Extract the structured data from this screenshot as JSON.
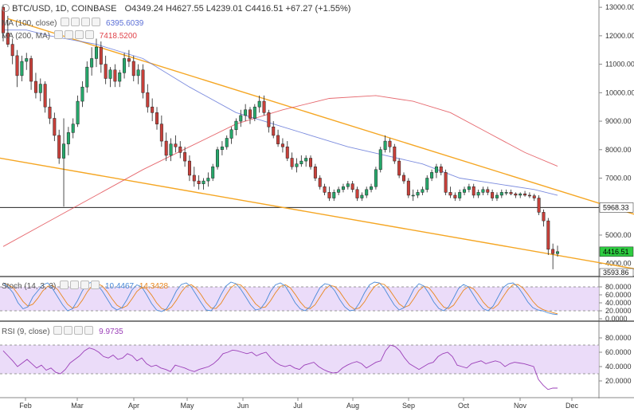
{
  "header": {
    "symbol": "BTC/USD, 1D, COINBASE",
    "open": "O4349.24",
    "high": "H4627.55",
    "low": "L4239.01",
    "close": "C4416.51",
    "change": "+67.27 (+1.55%)"
  },
  "indicators": {
    "ma100": {
      "label": "MA (100, close)",
      "value": "6395.6039",
      "color": "#5b6fd6"
    },
    "ma200": {
      "label": "MA (200, MA)",
      "value": "7418.5200",
      "color": "#e0434b"
    },
    "stoch": {
      "label": "Stoch (14, 3, 3)",
      "k": "10.4467",
      "d": "14.3428"
    },
    "rsi": {
      "label": "RSI (9, close)",
      "value": "9.9735"
    }
  },
  "chart_data": [
    {
      "type": "candlestick",
      "pane": "price",
      "x_tick_labels": [
        "Feb",
        "Mar",
        "Apr",
        "May",
        "Jun",
        "Jul",
        "Aug",
        "Sep",
        "Oct",
        "Nov",
        "Dec"
      ],
      "y_tick_labels": [
        "13000.00",
        "12000.00",
        "11000.00",
        "10000.00",
        "9000.00",
        "8000.00",
        "7000.00",
        "6000.00",
        "5000.00",
        "4000.00"
      ],
      "ylim": [
        3600,
        13200
      ],
      "horizontal_line": 5968.33,
      "price_labels": {
        "support": "5968.33",
        "last": "4416.51",
        "low": "3593.86"
      },
      "trendlines": [
        {
          "name": "upper",
          "from": [
            "Jan 18",
            12600
          ],
          "to": [
            "Dec 8",
            5700
          ]
        },
        {
          "name": "lower",
          "from": [
            "Jan 1",
            7800
          ],
          "to": [
            "Dec 8",
            3800
          ]
        }
      ],
      "candles_ohlc": [
        [
          13000,
          13100,
          11800,
          12100
        ],
        [
          12100,
          12700,
          11600,
          11700
        ],
        [
          11700,
          11900,
          11000,
          11300
        ],
        [
          11300,
          11500,
          10200,
          10600
        ],
        [
          10600,
          11300,
          10400,
          11100
        ],
        [
          11100,
          11400,
          10800,
          11200
        ],
        [
          11200,
          11300,
          10100,
          10400
        ],
        [
          10400,
          10700,
          9800,
          10000
        ],
        [
          10000,
          10500,
          9700,
          10300
        ],
        [
          10300,
          10400,
          9300,
          9500
        ],
        [
          9500,
          9800,
          8900,
          9100
        ],
        [
          9100,
          9300,
          8300,
          8500
        ],
        [
          8500,
          8700,
          7500,
          7700
        ],
        [
          7700,
          9100,
          6000,
          8200
        ],
        [
          8200,
          8800,
          7800,
          8600
        ],
        [
          8600,
          9100,
          8400,
          8900
        ],
        [
          8900,
          9900,
          8800,
          9700
        ],
        [
          9700,
          10400,
          9500,
          10200
        ],
        [
          10200,
          11100,
          10000,
          10900
        ],
        [
          10900,
          11600,
          10600,
          11200
        ],
        [
          11200,
          11900,
          10900,
          11600
        ],
        [
          11600,
          11800,
          10700,
          11000
        ],
        [
          11000,
          11300,
          10300,
          10500
        ],
        [
          10500,
          10900,
          10200,
          10800
        ],
        [
          10800,
          11000,
          10200,
          10400
        ],
        [
          10400,
          10800,
          10200,
          10700
        ],
        [
          10700,
          11400,
          10500,
          11200
        ],
        [
          11200,
          11500,
          10900,
          11100
        ],
        [
          11100,
          11300,
          10400,
          10600
        ],
        [
          10600,
          11000,
          10300,
          10800
        ],
        [
          10800,
          11000,
          9800,
          10000
        ],
        [
          10000,
          10300,
          9300,
          9500
        ],
        [
          9500,
          9800,
          9000,
          9300
        ],
        [
          9300,
          9500,
          8700,
          8900
        ],
        [
          8900,
          9200,
          8100,
          8300
        ],
        [
          8300,
          8600,
          7600,
          7800
        ],
        [
          7800,
          8400,
          7600,
          8200
        ],
        [
          8200,
          8500,
          7900,
          8100
        ],
        [
          8100,
          8300,
          7700,
          7900
        ],
        [
          7900,
          8100,
          7400,
          7600
        ],
        [
          7600,
          7800,
          6900,
          7100
        ],
        [
          7100,
          7400,
          6700,
          6900
        ],
        [
          6900,
          7100,
          6600,
          6800
        ],
        [
          6800,
          7000,
          6600,
          6900
        ],
        [
          6900,
          7200,
          6700,
          7000
        ],
        [
          7000,
          7500,
          6900,
          7400
        ],
        [
          7400,
          8100,
          7300,
          8000
        ],
        [
          8000,
          8300,
          7800,
          8100
        ],
        [
          8100,
          8500,
          8000,
          8400
        ],
        [
          8400,
          8800,
          8200,
          8700
        ],
        [
          8700,
          9100,
          8500,
          9000
        ],
        [
          9000,
          9400,
          8800,
          9200
        ],
        [
          9200,
          9600,
          9000,
          9400
        ],
        [
          9400,
          9500,
          8900,
          9100
        ],
        [
          9100,
          9600,
          9000,
          9500
        ],
        [
          9500,
          9900,
          9300,
          9700
        ],
        [
          9700,
          9900,
          9200,
          9300
        ],
        [
          9300,
          9400,
          8600,
          8800
        ],
        [
          8800,
          9000,
          8400,
          8500
        ],
        [
          8500,
          8700,
          8100,
          8200
        ],
        [
          8200,
          8400,
          7900,
          8100
        ],
        [
          8100,
          8300,
          7600,
          7700
        ],
        [
          7700,
          7900,
          7300,
          7400
        ],
        [
          7400,
          7700,
          7200,
          7500
        ],
        [
          7500,
          7800,
          7400,
          7600
        ],
        [
          7600,
          7800,
          7400,
          7700
        ],
        [
          7700,
          7800,
          7300,
          7400
        ],
        [
          7400,
          7500,
          6900,
          7000
        ],
        [
          7000,
          7100,
          6600,
          6700
        ],
        [
          6700,
          6800,
          6400,
          6500
        ],
        [
          6500,
          6700,
          6200,
          6300
        ],
        [
          6300,
          6600,
          6200,
          6500
        ],
        [
          6500,
          6700,
          6400,
          6600
        ],
        [
          6600,
          6800,
          6500,
          6700
        ],
        [
          6700,
          6900,
          6600,
          6800
        ],
        [
          6800,
          6900,
          6500,
          6600
        ],
        [
          6600,
          6700,
          6200,
          6300
        ],
        [
          6300,
          6500,
          6200,
          6400
        ],
        [
          6400,
          6700,
          6300,
          6600
        ],
        [
          6600,
          6800,
          6500,
          6700
        ],
        [
          6700,
          7400,
          6600,
          7300
        ],
        [
          7300,
          8100,
          7200,
          8000
        ],
        [
          8000,
          8500,
          7900,
          8300
        ],
        [
          8300,
          8400,
          7900,
          8100
        ],
        [
          8100,
          8200,
          7500,
          7600
        ],
        [
          7600,
          7700,
          7000,
          7100
        ],
        [
          7100,
          7200,
          6800,
          6900
        ],
        [
          6900,
          7000,
          6300,
          6400
        ],
        [
          6400,
          6600,
          6200,
          6400
        ],
        [
          6400,
          6600,
          6300,
          6500
        ],
        [
          6500,
          6700,
          6400,
          6600
        ],
        [
          6600,
          7100,
          6500,
          7000
        ],
        [
          7000,
          7300,
          6900,
          7200
        ],
        [
          7200,
          7500,
          7000,
          7400
        ],
        [
          7400,
          7500,
          7100,
          7200
        ],
        [
          7200,
          7300,
          6400,
          6500
        ],
        [
          6500,
          6700,
          6300,
          6400
        ],
        [
          6400,
          6500,
          6200,
          6300
        ],
        [
          6300,
          6600,
          6200,
          6500
        ],
        [
          6500,
          6700,
          6400,
          6600
        ],
        [
          6600,
          6800,
          6500,
          6700
        ],
        [
          6700,
          6800,
          6300,
          6400
        ],
        [
          6400,
          6600,
          6300,
          6500
        ],
        [
          6500,
          6700,
          6400,
          6600
        ],
        [
          6600,
          6700,
          6400,
          6500
        ],
        [
          6500,
          6600,
          6200,
          6300
        ],
        [
          6300,
          6500,
          6200,
          6400
        ],
        [
          6400,
          6600,
          6300,
          6500
        ],
        [
          6500,
          6600,
          6400,
          6500
        ],
        [
          6500,
          6600,
          6400,
          6450
        ],
        [
          6450,
          6500,
          6300,
          6400
        ],
        [
          6400,
          6500,
          6300,
          6450
        ],
        [
          6450,
          6550,
          6350,
          6400
        ],
        [
          6400,
          6500,
          6300,
          6380
        ],
        [
          6380,
          6450,
          6200,
          6300
        ],
        [
          6300,
          6400,
          5700,
          5800
        ],
        [
          5800,
          5900,
          5300,
          5500
        ],
        [
          5500,
          5600,
          4300,
          4500
        ],
        [
          4500,
          4700,
          3800,
          4350
        ],
        [
          4350,
          4630,
          4240,
          4417
        ]
      ],
      "ma100_points": [
        [
          0,
          12200
        ],
        [
          5,
          12200
        ],
        [
          10,
          12000
        ],
        [
          20,
          11700
        ],
        [
          30,
          11200
        ],
        [
          40,
          10200
        ],
        [
          50,
          9300
        ],
        [
          58,
          8900
        ],
        [
          66,
          8500
        ],
        [
          74,
          8100
        ],
        [
          82,
          7800
        ],
        [
          90,
          7500
        ],
        [
          98,
          7000
        ],
        [
          106,
          6800
        ],
        [
          114,
          6600
        ],
        [
          119,
          6395.6
        ]
      ],
      "ma200_points": [
        [
          0,
          4600
        ],
        [
          10,
          5500
        ],
        [
          20,
          6400
        ],
        [
          30,
          7300
        ],
        [
          40,
          8100
        ],
        [
          50,
          8900
        ],
        [
          60,
          9400
        ],
        [
          70,
          9800
        ],
        [
          80,
          9900
        ],
        [
          88,
          9700
        ],
        [
          96,
          9300
        ],
        [
          104,
          8600
        ],
        [
          112,
          7900
        ],
        [
          119,
          7418.5
        ]
      ]
    },
    {
      "type": "line",
      "pane": "stochastic",
      "y_tick_labels": [
        "80.0000",
        "60.0000",
        "40.0000",
        "20.0000",
        "0.0000"
      ],
      "ylim": [
        0,
        100
      ],
      "band": [
        20,
        80
      ],
      "k_values": [
        90,
        80,
        65,
        40,
        25,
        30,
        55,
        70,
        85,
        90,
        75,
        55,
        35,
        20,
        25,
        45,
        70,
        88,
        92,
        85,
        70,
        50,
        30,
        22,
        28,
        48,
        72,
        85,
        80,
        60,
        38,
        22,
        18,
        25,
        45,
        70,
        86,
        90,
        80,
        60,
        40,
        22,
        20,
        35,
        60,
        82,
        92,
        88,
        74,
        55,
        35,
        22,
        25,
        42,
        68,
        85,
        90,
        82,
        62,
        40,
        25,
        20,
        30,
        55,
        78,
        88,
        85,
        70,
        48,
        30,
        20,
        22,
        40,
        65,
        85,
        92,
        90,
        76,
        55,
        35,
        22,
        28,
        50,
        75,
        88,
        82,
        64,
        42,
        26,
        20,
        30,
        52,
        76,
        86,
        80,
        60,
        40,
        25,
        20,
        32,
        55,
        78,
        88,
        90,
        80,
        62,
        42,
        28,
        22,
        20,
        15,
        12,
        10.4
      ]
    },
    {
      "type": "line",
      "pane": "rsi",
      "y_tick_labels": [
        "80.0000",
        "60.0000",
        "40.0000",
        "20.0000"
      ],
      "ylim": [
        0,
        100
      ],
      "band": [
        30,
        70
      ],
      "values": [
        62,
        55,
        48,
        40,
        45,
        50,
        44,
        38,
        42,
        35,
        38,
        32,
        30,
        36,
        45,
        50,
        55,
        62,
        66,
        64,
        60,
        54,
        52,
        56,
        50,
        52,
        58,
        55,
        48,
        52,
        44,
        40,
        42,
        38,
        36,
        33,
        42,
        40,
        38,
        35,
        33,
        36,
        38,
        40,
        44,
        50,
        58,
        60,
        63,
        62,
        60,
        58,
        60,
        55,
        58,
        60,
        52,
        46,
        42,
        40,
        42,
        38,
        36,
        42,
        44,
        46,
        40,
        36,
        33,
        31,
        32,
        38,
        42,
        45,
        47,
        44,
        38,
        42,
        46,
        48,
        62,
        70,
        68,
        62,
        52,
        44,
        40,
        36,
        40,
        44,
        46,
        54,
        58,
        60,
        54,
        42,
        40,
        38,
        44,
        46,
        48,
        44,
        46,
        48,
        46,
        40,
        44,
        46,
        45,
        44,
        42,
        40,
        22,
        14,
        8,
        10,
        9.97
      ]
    }
  ]
}
